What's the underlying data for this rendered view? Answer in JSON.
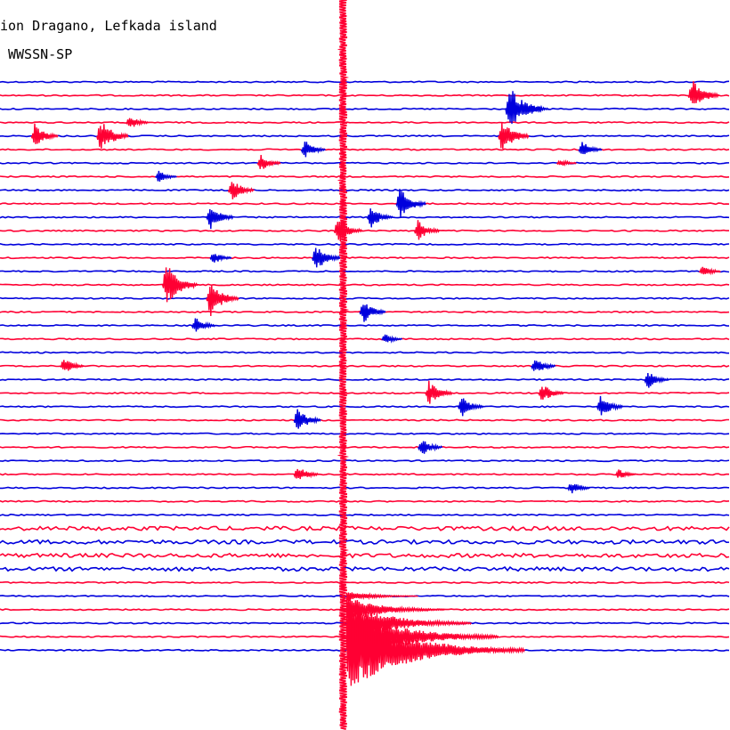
{
  "header": {
    "station": "ion Dragano, Lefkada island",
    "filter": "WWSSN-SP"
  },
  "colors": {
    "trace_a": "#0000dd",
    "trace_b": "#ff0033",
    "background": "#ffffff"
  },
  "chart_data": {
    "type": "line",
    "title": "ion Dragano, Lefkada island",
    "subtitle": "WWSSN-SP",
    "xlabel": "",
    "ylabel": "",
    "grid": false,
    "legend": "none",
    "trace_count": 43,
    "trace_colors": [
      "blue",
      "red"
    ],
    "events": [
      {
        "trace": 1,
        "x": 0.95,
        "amplitude": 1.6,
        "color": "red"
      },
      {
        "trace": 2,
        "x": 0.7,
        "amplitude": 2.3,
        "color": "blue"
      },
      {
        "trace": 2,
        "x": 0.73,
        "amplitude": 0.6,
        "color": "blue"
      },
      {
        "trace": 3,
        "x": 0.18,
        "amplitude": 0.7,
        "color": "red"
      },
      {
        "trace": 4,
        "x": 0.05,
        "amplitude": 1.2,
        "color": "red"
      },
      {
        "trace": 4,
        "x": 0.14,
        "amplitude": 1.7,
        "color": "red"
      },
      {
        "trace": 4,
        "x": 0.69,
        "amplitude": 1.6,
        "color": "red"
      },
      {
        "trace": 5,
        "x": 0.8,
        "amplitude": 0.8,
        "color": "blue"
      },
      {
        "trace": 5,
        "x": 0.42,
        "amplitude": 0.9,
        "color": "blue"
      },
      {
        "trace": 6,
        "x": 0.36,
        "amplitude": 0.8,
        "color": "red"
      },
      {
        "trace": 6,
        "x": 0.77,
        "amplitude": 0.4,
        "color": "red"
      },
      {
        "trace": 7,
        "x": 0.22,
        "amplitude": 0.6,
        "color": "blue"
      },
      {
        "trace": 8,
        "x": 0.32,
        "amplitude": 1.1,
        "color": "red"
      },
      {
        "trace": 9,
        "x": 0.55,
        "amplitude": 1.5,
        "color": "blue"
      },
      {
        "trace": 10,
        "x": 0.29,
        "amplitude": 1.2,
        "color": "blue"
      },
      {
        "trace": 10,
        "x": 0.51,
        "amplitude": 1.1,
        "color": "blue"
      },
      {
        "trace": 11,
        "x": 0.465,
        "amplitude": 1.3,
        "color": "red"
      },
      {
        "trace": 11,
        "x": 0.575,
        "amplitude": 1.0,
        "color": "red"
      },
      {
        "trace": 13,
        "x": 0.295,
        "amplitude": 0.6,
        "color": "blue"
      },
      {
        "trace": 13,
        "x": 0.435,
        "amplitude": 1.3,
        "color": "blue"
      },
      {
        "trace": 14,
        "x": 0.965,
        "amplitude": 0.6,
        "color": "red"
      },
      {
        "trace": 15,
        "x": 0.23,
        "amplitude": 2.1,
        "color": "red"
      },
      {
        "trace": 16,
        "x": 0.29,
        "amplitude": 1.8,
        "color": "red"
      },
      {
        "trace": 17,
        "x": 0.5,
        "amplitude": 1.1,
        "color": "blue"
      },
      {
        "trace": 18,
        "x": 0.27,
        "amplitude": 0.8,
        "color": "blue"
      },
      {
        "trace": 19,
        "x": 0.53,
        "amplitude": 0.5,
        "color": "blue"
      },
      {
        "trace": 21,
        "x": 0.09,
        "amplitude": 0.8,
        "color": "red"
      },
      {
        "trace": 21,
        "x": 0.735,
        "amplitude": 0.9,
        "color": "blue"
      },
      {
        "trace": 22,
        "x": 0.89,
        "amplitude": 0.9,
        "color": "blue"
      },
      {
        "trace": 23,
        "x": 0.59,
        "amplitude": 1.2,
        "color": "red"
      },
      {
        "trace": 23,
        "x": 0.745,
        "amplitude": 1.0,
        "color": "red"
      },
      {
        "trace": 24,
        "x": 0.635,
        "amplitude": 1.0,
        "color": "blue"
      },
      {
        "trace": 24,
        "x": 0.825,
        "amplitude": 1.1,
        "color": "blue"
      },
      {
        "trace": 25,
        "x": 0.41,
        "amplitude": 1.2,
        "color": "blue"
      },
      {
        "trace": 27,
        "x": 0.58,
        "amplitude": 0.9,
        "color": "blue"
      },
      {
        "trace": 29,
        "x": 0.41,
        "amplitude": 0.9,
        "color": "red"
      },
      {
        "trace": 30,
        "x": 0.785,
        "amplitude": 0.7,
        "color": "blue"
      },
      {
        "trace": 29,
        "x": 0.85,
        "amplitude": 0.5,
        "color": "red"
      }
    ],
    "main_event": {
      "x": 0.47,
      "start_trace": 0,
      "end_trace": 42,
      "amplitude": 6.0,
      "color": "red"
    }
  }
}
